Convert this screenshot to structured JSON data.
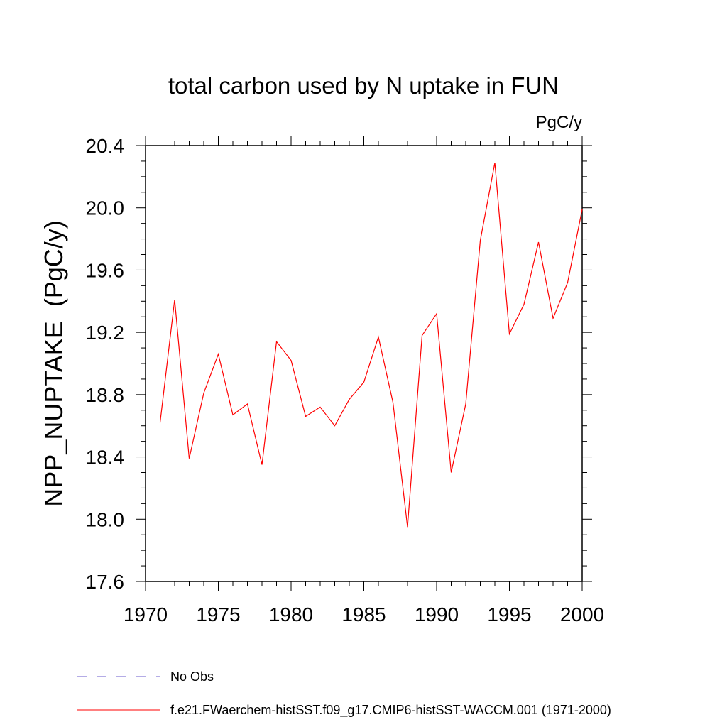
{
  "chart_data": {
    "type": "line",
    "title": "total carbon used by N uptake in FUN",
    "units_label": "PgC/y",
    "ylabel": "NPP_NUPTAKE  (PgC/y)",
    "xlabel": "",
    "xlim": [
      1970,
      2000
    ],
    "ylim": [
      17.6,
      20.4
    ],
    "xticks": [
      "1970",
      "1975",
      "1980",
      "1985",
      "1990",
      "1995",
      "2000"
    ],
    "yticks": [
      "17.6",
      "18.0",
      "18.4",
      "18.8",
      "19.2",
      "19.6",
      "20.0",
      "20.4"
    ],
    "x": [
      1971,
      1972,
      1973,
      1974,
      1975,
      1976,
      1977,
      1978,
      1979,
      1980,
      1981,
      1982,
      1983,
      1984,
      1985,
      1986,
      1987,
      1988,
      1989,
      1990,
      1991,
      1992,
      1993,
      1994,
      1995,
      1996,
      1997,
      1998,
      1999,
      2000
    ],
    "series": [
      {
        "name": "f.e21.FWaerchem-histSST.f09_g17.CMIP6-histSST-WACCM.001 (1971-2000)",
        "color": "#ff0000",
        "values": [
          18.62,
          19.41,
          18.39,
          18.81,
          19.06,
          18.67,
          18.74,
          18.35,
          19.14,
          19.02,
          18.66,
          18.72,
          18.6,
          18.77,
          18.88,
          19.17,
          18.75,
          17.95,
          19.18,
          19.32,
          18.3,
          18.74,
          19.79,
          20.29,
          19.19,
          19.38,
          19.78,
          19.29,
          19.52,
          19.99
        ]
      }
    ],
    "legend": [
      {
        "label": "No Obs",
        "style": "dashed",
        "color": "#6a5acd"
      },
      {
        "label": "f.e21.FWaerchem-histSST.f09_g17.CMIP6-histSST-WACCM.001 (1971-2000)",
        "style": "solid",
        "color": "#ff0000"
      }
    ],
    "legend_position": "bottom-left",
    "grid": false
  }
}
